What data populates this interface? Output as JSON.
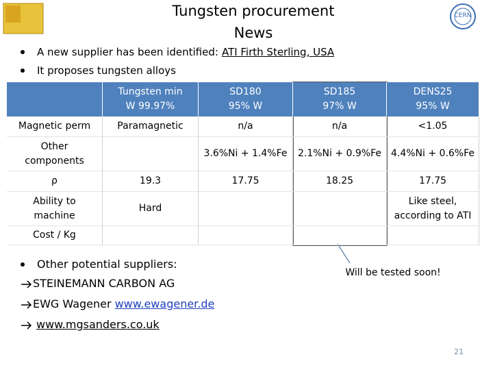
{
  "header": {
    "title_lines": [
      "Tungsten procurement",
      "News"
    ],
    "logo": "CERN"
  },
  "intro": [
    {
      "text": "A new supplier has been identified:",
      "link": "ATI Firth Sterling, USA"
    },
    {
      "text": "It proposes tungsten alloys"
    }
  ],
  "table": {
    "columns": [
      [
        "Tungsten min",
        "W 99.97%"
      ],
      [
        "SD180",
        "95% W"
      ],
      [
        "SD185",
        "97% W"
      ],
      [
        "DENS25",
        "95% W"
      ]
    ],
    "rows": [
      {
        "label": [
          "Magnetic perm"
        ],
        "cells": [
          [
            "Paramagnetic"
          ],
          [
            "n/a"
          ],
          [
            "n/a"
          ],
          [
            "<1.05"
          ]
        ]
      },
      {
        "label": [
          "Other",
          "components"
        ],
        "cells": [
          null,
          [
            "3.6%Ni + 1.4%Fe"
          ],
          [
            "2.1%Ni + 0.9%Fe"
          ],
          [
            "4.4%Ni + 0.6%Fe"
          ]
        ]
      },
      {
        "label": [
          "ρ"
        ],
        "cells": [
          [
            "19.3"
          ],
          [
            "17.75"
          ],
          [
            "18.25"
          ],
          [
            "17.75"
          ]
        ]
      },
      {
        "label": [
          "Ability to",
          "machine"
        ],
        "cells": [
          [
            "Hard"
          ],
          null,
          null,
          [
            "Like steel,",
            "according to ATI"
          ]
        ]
      },
      {
        "label": [
          "Cost / Kg"
        ],
        "cells": [
          null,
          null,
          null,
          null
        ]
      }
    ]
  },
  "suppliers": {
    "heading": "Other potential suppliers:",
    "items": [
      {
        "text": "STEINEMANN CARBON AG"
      },
      {
        "text": "EWG Wagener",
        "link": "www.ewagener.de"
      },
      {
        "link": "www.mgsanders.co.uk"
      }
    ]
  },
  "callout": "Will be tested soon!",
  "page_number": "21"
}
